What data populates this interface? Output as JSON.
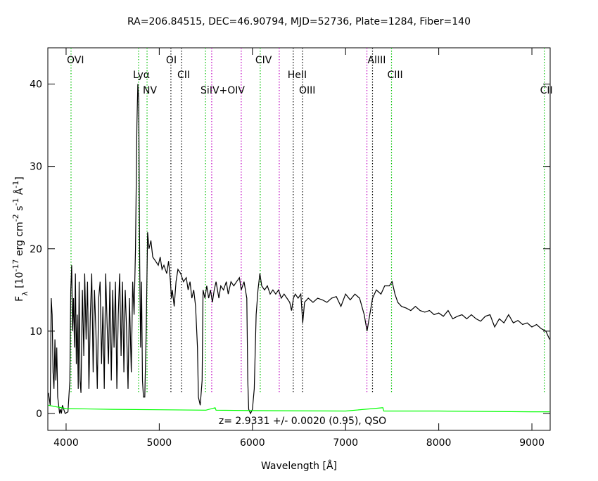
{
  "chart_data": {
    "type": "line",
    "title": "RA=206.84515, DEC=46.90794, MJD=52736, Plate=1284, Fiber=140",
    "xlabel": "Wavelength [Å]",
    "ylabel_parts": [
      {
        "text": "F"
      },
      {
        "text": "λ",
        "sub": true
      },
      {
        "text": " [10"
      },
      {
        "text": "-17",
        "sup": true
      },
      {
        "text": " erg cm"
      },
      {
        "text": "-2",
        "sup": true
      },
      {
        "text": " s"
      },
      {
        "text": "-1",
        "sup": true
      },
      {
        "text": " Å"
      },
      {
        "text": "-1",
        "sup": true
      },
      {
        "text": "]"
      }
    ],
    "annotation": "z= 2.9331 +/- 0.0020 (0.95), QSO",
    "xlim": [
      3804,
      9196
    ],
    "ylim": [
      -2.05,
      44.4
    ],
    "xticks": [
      4000,
      5000,
      6000,
      7000,
      8000,
      9000
    ],
    "yticks": [
      0,
      10,
      20,
      30,
      40
    ],
    "lines": [
      {
        "label": "OVI",
        "x": 4053,
        "color": "#00c000"
      },
      {
        "label": "Lyα",
        "x": 4778,
        "color": "#00c000"
      },
      {
        "label": "NV",
        "x": 4869,
        "color": "#00c000"
      },
      {
        "label": "OI",
        "x": 5125,
        "color": "#000000"
      },
      {
        "label": "CII",
        "x": 5239,
        "color": "#000000"
      },
      {
        "label": "SiIV+OIV",
        "x": 5496,
        "color": "#00c000"
      },
      {
        "label": null,
        "x": 5563,
        "color": "#c000c0"
      },
      {
        "label": null,
        "x": 5880,
        "color": "#c000c0"
      },
      {
        "label": "CIV",
        "x": 6084,
        "color": "#00c000"
      },
      {
        "label": null,
        "x": 6288,
        "color": "#c000c0"
      },
      {
        "label": "HeII",
        "x": 6438,
        "color": "#000000"
      },
      {
        "label": "OIII",
        "x": 6538,
        "color": "#000000"
      },
      {
        "label": null,
        "x": 7229,
        "color": "#c000c0"
      },
      {
        "label": "AlIII",
        "x": 7289,
        "color": "#000000"
      },
      {
        "label": "CIII",
        "x": 7493,
        "color": "#00c000"
      },
      {
        "label": "CII",
        "x": 9133,
        "color": "#00c000"
      }
    ],
    "series": [
      {
        "color": "#000000",
        "x": [
          3810,
          3830,
          3840,
          3850,
          3860,
          3870,
          3880,
          3890,
          3900,
          3910,
          3920,
          3930,
          3940,
          3950,
          3960,
          3975,
          3990,
          4020,
          4040,
          4050,
          4060,
          4070,
          4080,
          4090,
          4100,
          4110,
          4120,
          4130,
          4140,
          4150,
          4160,
          4175,
          4190,
          4200,
          4215,
          4230,
          4245,
          4260,
          4275,
          4290,
          4305,
          4320,
          4335,
          4350,
          4365,
          4380,
          4395,
          4410,
          4425,
          4440,
          4455,
          4470,
          4485,
          4500,
          4515,
          4530,
          4545,
          4560,
          4575,
          4590,
          4605,
          4620,
          4635,
          4650,
          4665,
          4680,
          4700,
          4715,
          4730,
          4745,
          4760,
          4770,
          4780,
          4790,
          4800,
          4810,
          4820,
          4830,
          4845,
          4860,
          4875,
          4890,
          4910,
          4930,
          4960,
          4990,
          5010,
          5030,
          5050,
          5080,
          5100,
          5120,
          5130,
          5140,
          5160,
          5180,
          5200,
          5230,
          5260,
          5290,
          5310,
          5330,
          5350,
          5370,
          5390,
          5410,
          5420,
          5440,
          5460,
          5470,
          5490,
          5510,
          5530,
          5550,
          5570,
          5590,
          5610,
          5640,
          5660,
          5690,
          5720,
          5740,
          5770,
          5800,
          5830,
          5860,
          5880,
          5910,
          5940,
          5950,
          5960,
          5980,
          6000,
          6020,
          6040,
          6060,
          6080,
          6100,
          6130,
          6160,
          6190,
          6220,
          6250,
          6280,
          6310,
          6340,
          6370,
          6400,
          6420,
          6440,
          6460,
          6490,
          6520,
          6540,
          6560,
          6600,
          6650,
          6700,
          6750,
          6800,
          6850,
          6900,
          6950,
          7000,
          7050,
          7100,
          7150,
          7200,
          7230,
          7260,
          7290,
          7330,
          7380,
          7420,
          7470,
          7500,
          7530,
          7560,
          7600,
          7650,
          7700,
          7750,
          7800,
          7850,
          7900,
          7950,
          8000,
          8050,
          8100,
          8150,
          8200,
          8250,
          8300,
          8350,
          8400,
          8450,
          8500,
          8550,
          8600,
          8650,
          8700,
          8750,
          8800,
          8850,
          8900,
          8950,
          9000,
          9050,
          9100,
          9150,
          9190
        ],
        "values": [
          2.5,
          1,
          14,
          12,
          5,
          3,
          9,
          4,
          8,
          2,
          1,
          0,
          0.5,
          0,
          1,
          0.5,
          0,
          0.2,
          4,
          15,
          18,
          10,
          14,
          8,
          17,
          6,
          12,
          3,
          16,
          4,
          2.5,
          15,
          7,
          17,
          9,
          16,
          3,
          12,
          17,
          5,
          15,
          10,
          3,
          14,
          16,
          6,
          13,
          3,
          17,
          11,
          6,
          16,
          4,
          15,
          8,
          16,
          3,
          12,
          17,
          7,
          16,
          5,
          15,
          10,
          3,
          14,
          5,
          16,
          12,
          20,
          35,
          40,
          38,
          18,
          8,
          16,
          4,
          2,
          2,
          10,
          22,
          20,
          21,
          19,
          18.5,
          18,
          19,
          17.5,
          18,
          17,
          18.5,
          16,
          14,
          15,
          13,
          16,
          17.5,
          17,
          16,
          16.5,
          15,
          16,
          14,
          15,
          13,
          8,
          2,
          1,
          4,
          15,
          14,
          15.5,
          14,
          15,
          13.5,
          15,
          16,
          14,
          15.5,
          15,
          16,
          14.5,
          16,
          15.5,
          16,
          16.5,
          15,
          16,
          14,
          4,
          0.5,
          0,
          0.5,
          3,
          12,
          15,
          17,
          15.5,
          15,
          15.5,
          14.5,
          15,
          14.5,
          15,
          14,
          14.5,
          14,
          13.5,
          12.5,
          14,
          14.5,
          14,
          14.5,
          11,
          13.5,
          14,
          13.5,
          14,
          13.8,
          13.5,
          14,
          14.2,
          13,
          14.5,
          13.8,
          14.5,
          14,
          12,
          10,
          12,
          14,
          15,
          14.5,
          15.5,
          15.5,
          16,
          14.5,
          13.5,
          13,
          12.8,
          12.5,
          13,
          12.5,
          12.3,
          12.5,
          12,
          12.2,
          11.8,
          12.5,
          11.5,
          11.8,
          12,
          11.5,
          12,
          11.5,
          11.2,
          11.8,
          12,
          10.5,
          11.5,
          11,
          12,
          11,
          11.3,
          10.8,
          11,
          10.5,
          10.8,
          10.3,
          10,
          9
        ]
      },
      {
        "color": "#00ff00",
        "x": [
          3810,
          3900,
          4000,
          4500,
          5000,
          5500,
          5600,
          5610,
          6000,
          7000,
          7400,
          7410,
          8000,
          9000,
          9190
        ],
        "values": [
          1,
          0.8,
          0.6,
          0.5,
          0.45,
          0.4,
          0.7,
          0.4,
          0.35,
          0.3,
          0.7,
          0.3,
          0.3,
          0.2,
          0.2
        ]
      }
    ]
  }
}
